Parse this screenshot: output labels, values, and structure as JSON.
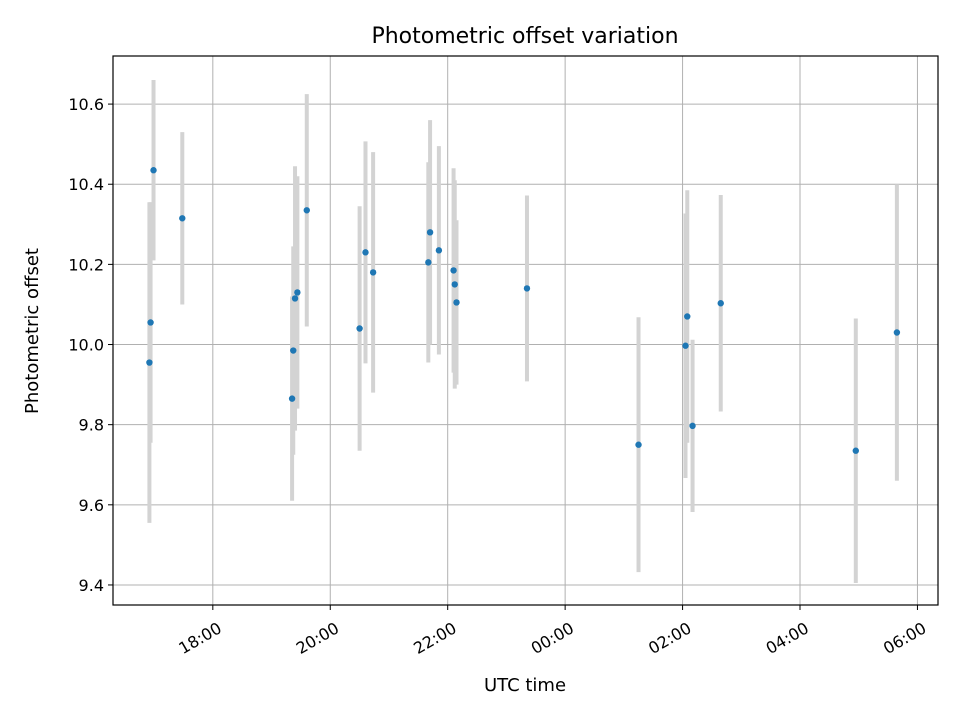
{
  "chart_data": {
    "type": "scatter",
    "title": "Photometric offset variation",
    "xlabel": "UTC time",
    "ylabel": "Photometric offset",
    "x_unit": "hours since 00:00 UTC of first night (values > 24 are after midnight)",
    "xlim": [
      16.3,
      30.35
    ],
    "ylim": [
      9.35,
      10.72
    ],
    "grid": true,
    "legend": "none",
    "marker_color": "#1f77b4",
    "errorbar_color": "#d3d3d3",
    "x_ticks": [
      {
        "value": 18,
        "label": "18:00"
      },
      {
        "value": 20,
        "label": "20:00"
      },
      {
        "value": 22,
        "label": "22:00"
      },
      {
        "value": 24,
        "label": "00:00"
      },
      {
        "value": 26,
        "label": "02:00"
      },
      {
        "value": 28,
        "label": "04:00"
      },
      {
        "value": 30,
        "label": "06:00"
      }
    ],
    "y_ticks": [
      {
        "value": 9.4,
        "label": "9.4"
      },
      {
        "value": 9.6,
        "label": "9.6"
      },
      {
        "value": 9.8,
        "label": "9.8"
      },
      {
        "value": 10.0,
        "label": "10.0"
      },
      {
        "value": 10.2,
        "label": "10.2"
      },
      {
        "value": 10.4,
        "label": "10.4"
      },
      {
        "value": 10.6,
        "label": "10.6"
      }
    ],
    "points": [
      {
        "x": 16.92,
        "y": 9.955,
        "err": 0.4
      },
      {
        "x": 16.94,
        "y": 10.055,
        "err": 0.3
      },
      {
        "x": 16.99,
        "y": 10.435,
        "err": 0.225
      },
      {
        "x": 17.48,
        "y": 10.315,
        "err": 0.215
      },
      {
        "x": 19.35,
        "y": 9.865,
        "err": 0.255
      },
      {
        "x": 19.37,
        "y": 9.985,
        "err": 0.26
      },
      {
        "x": 19.4,
        "y": 10.115,
        "err": 0.33
      },
      {
        "x": 19.44,
        "y": 10.13,
        "err": 0.29
      },
      {
        "x": 19.6,
        "y": 10.335,
        "err": 0.29
      },
      {
        "x": 20.5,
        "y": 10.04,
        "err": 0.305
      },
      {
        "x": 20.6,
        "y": 10.23,
        "err": 0.277
      },
      {
        "x": 20.73,
        "y": 10.18,
        "err": 0.3
      },
      {
        "x": 21.67,
        "y": 10.205,
        "err": 0.25
      },
      {
        "x": 21.7,
        "y": 10.28,
        "err": 0.28
      },
      {
        "x": 21.85,
        "y": 10.235,
        "err": 0.26
      },
      {
        "x": 22.1,
        "y": 10.185,
        "err": 0.255
      },
      {
        "x": 22.12,
        "y": 10.15,
        "err": 0.26
      },
      {
        "x": 22.15,
        "y": 10.105,
        "err": 0.205
      },
      {
        "x": 23.35,
        "y": 10.14,
        "err": 0.232
      },
      {
        "x": 25.25,
        "y": 9.75,
        "err": 0.318
      },
      {
        "x": 26.05,
        "y": 9.997,
        "err": 0.33
      },
      {
        "x": 26.08,
        "y": 10.07,
        "err": 0.315
      },
      {
        "x": 26.17,
        "y": 9.797,
        "err": 0.215
      },
      {
        "x": 26.65,
        "y": 10.103,
        "err": 0.27
      },
      {
        "x": 28.95,
        "y": 9.735,
        "err": 0.33
      },
      {
        "x": 29.65,
        "y": 10.03,
        "err": 0.37
      }
    ]
  }
}
